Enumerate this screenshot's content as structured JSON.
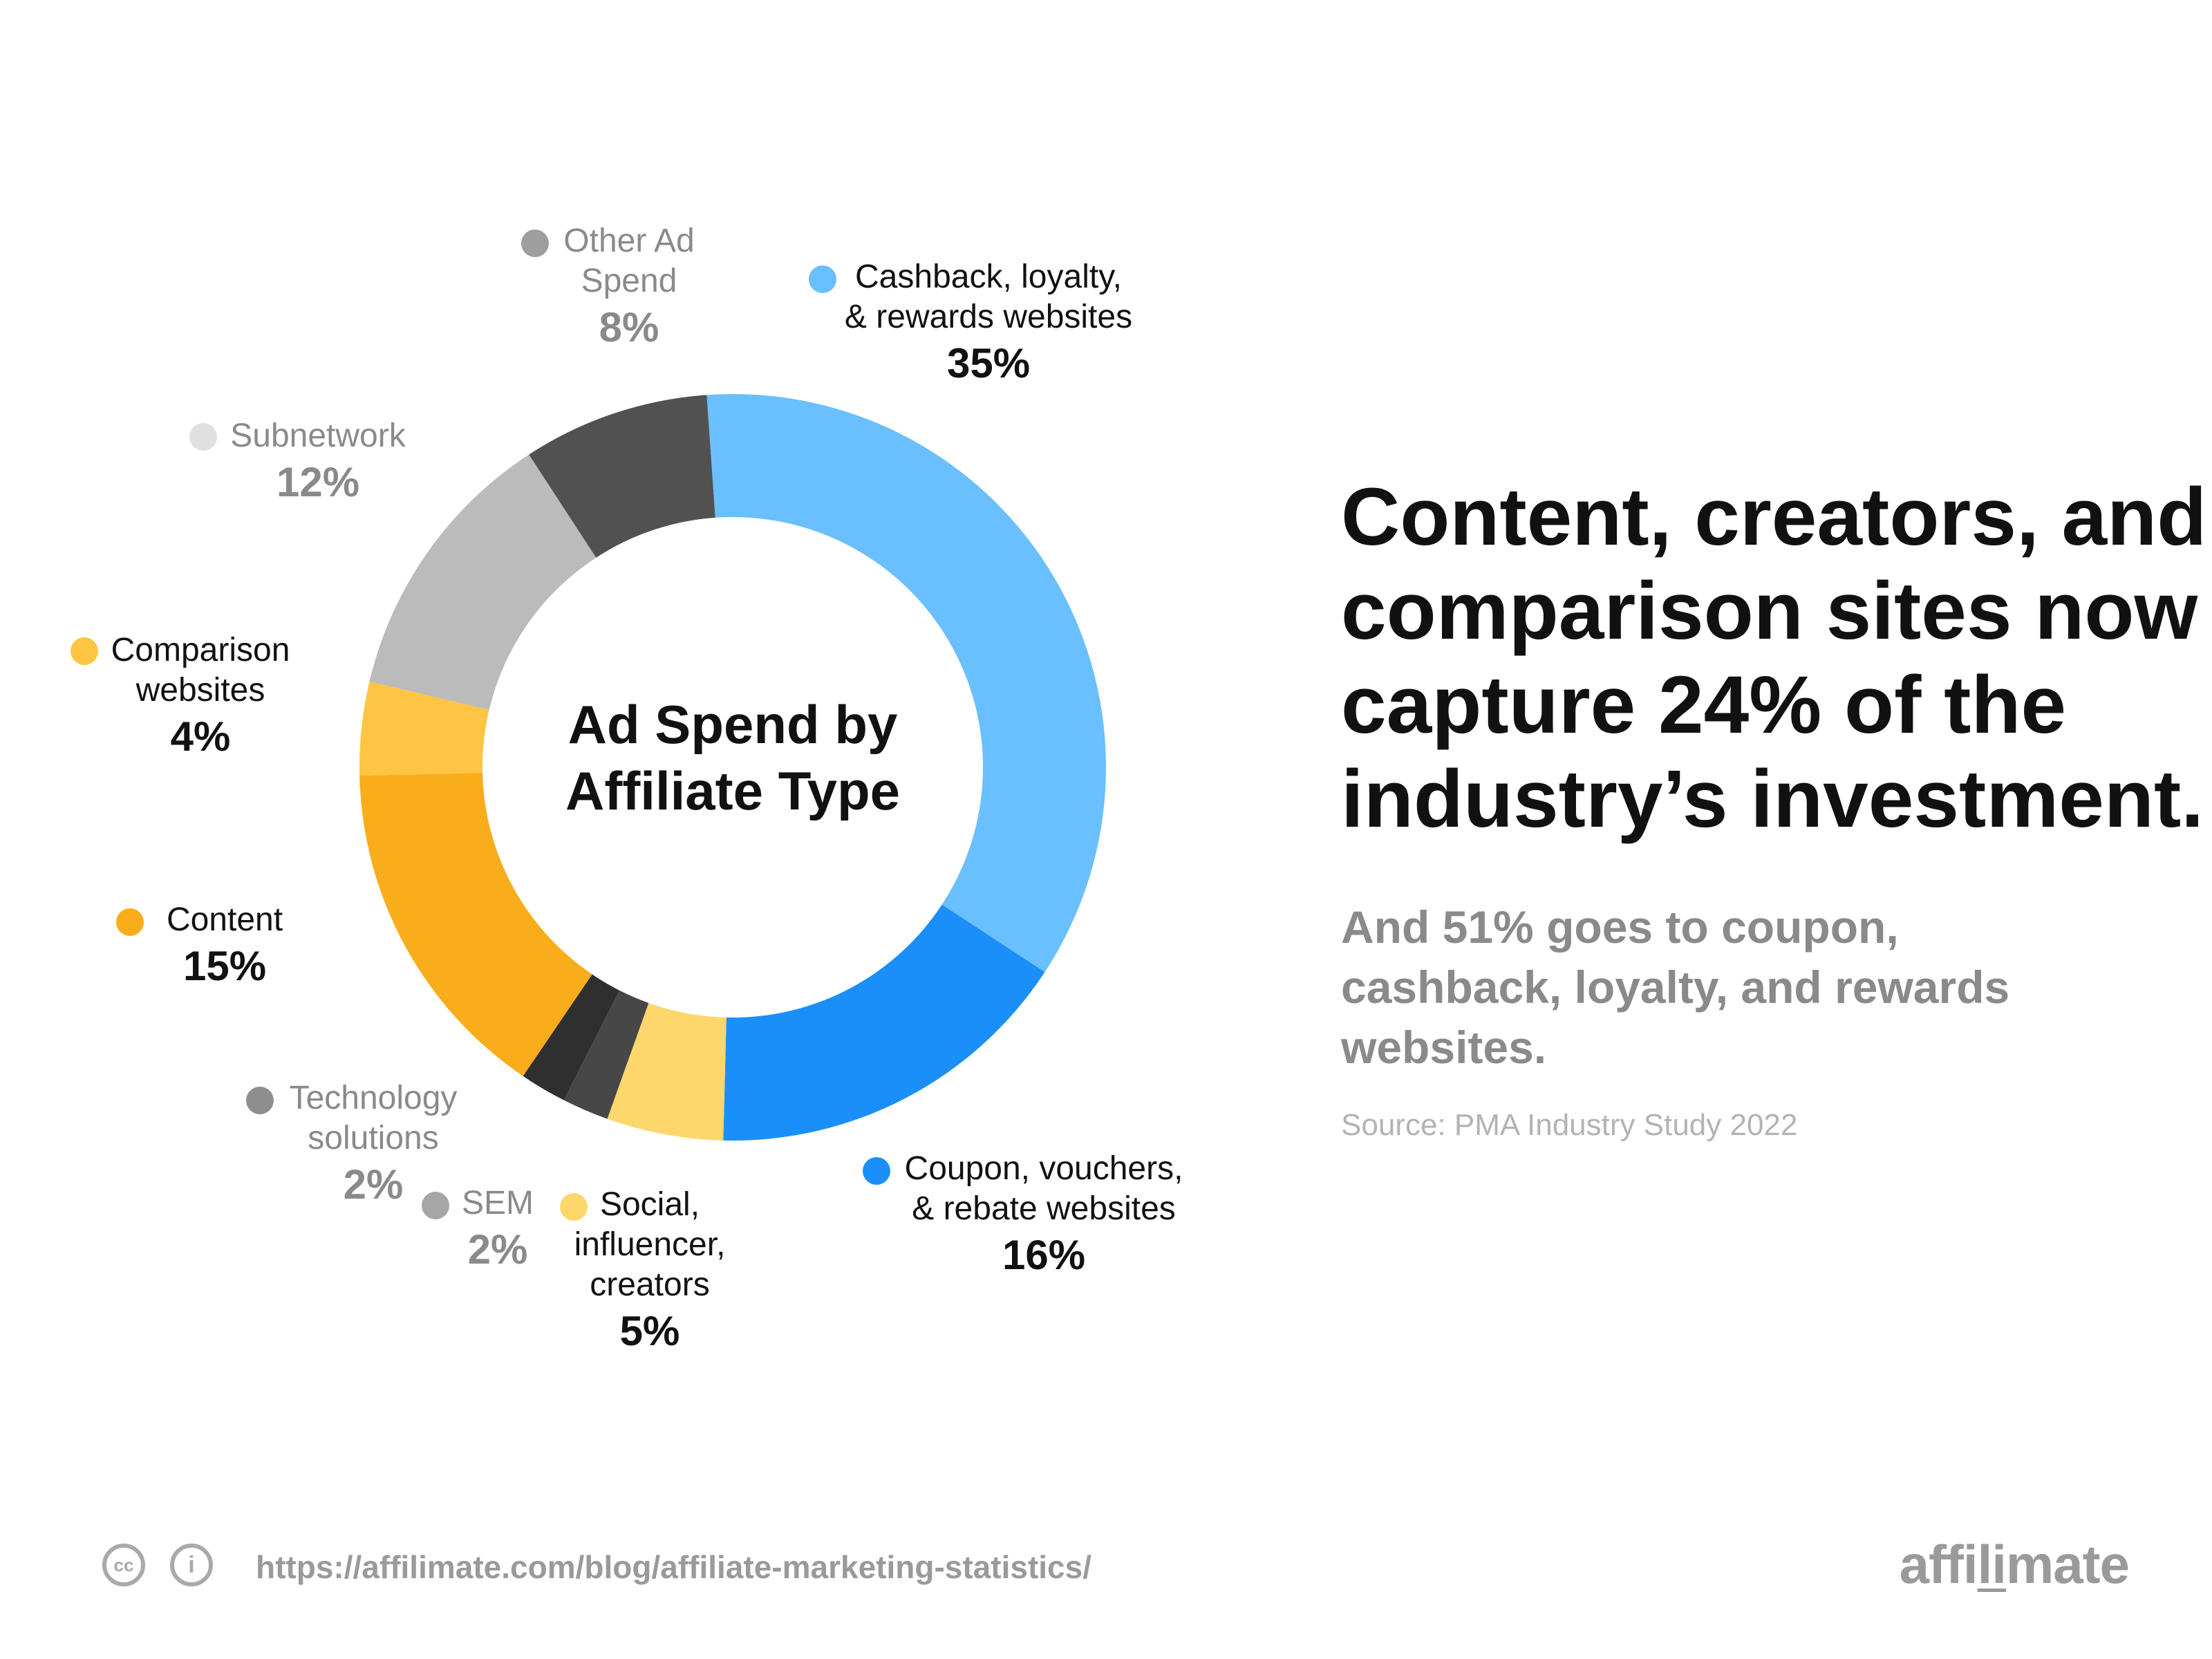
{
  "chart_data": {
    "type": "pie",
    "title": "Ad Spend by Affiliate Type",
    "title_lines": [
      "Ad Spend by",
      "Affiliate Type"
    ],
    "slices": [
      {
        "key": "cashback",
        "name_lines": [
          "Cashback, loyalty,",
          "& rewards websites"
        ],
        "value": 35,
        "label": "35%",
        "color": "#6abfff",
        "text_color": "#111111"
      },
      {
        "key": "coupon",
        "name_lines": [
          "Coupon, vouchers,",
          "& rebate websites"
        ],
        "value": 16,
        "label": "16%",
        "color": "#1a8ffa",
        "text_color": "#111111"
      },
      {
        "key": "social",
        "name_lines": [
          "Social,",
          "influencer,",
          "creators"
        ],
        "value": 5,
        "label": "5%",
        "color": "#fdd76b",
        "text_color": "#111111"
      },
      {
        "key": "sem",
        "name_lines": [
          "SEM"
        ],
        "value": 2,
        "label": "2%",
        "color": "#474747",
        "dot_color": "#a6a6a6",
        "text_color": "#8a8a8a"
      },
      {
        "key": "technology",
        "name_lines": [
          "Technology",
          "solutions"
        ],
        "value": 2,
        "label": "2%",
        "color": "#2f2f2f",
        "dot_color": "#8e8e8e",
        "text_color": "#8a8a8a"
      },
      {
        "key": "content",
        "name_lines": [
          "Content"
        ],
        "value": 15,
        "label": "15%",
        "color": "#f9ad1b",
        "text_color": "#111111"
      },
      {
        "key": "comparison",
        "name_lines": [
          "Comparison",
          "websites"
        ],
        "value": 4,
        "label": "4%",
        "color": "#fdc543",
        "text_color": "#111111"
      },
      {
        "key": "subnetwork",
        "name_lines": [
          "Subnetwork"
        ],
        "value": 12,
        "label": "12%",
        "color": "#bbbbbb",
        "dot_color": "#e0e0e0",
        "text_color": "#8a8a8a"
      },
      {
        "key": "other",
        "name_lines": [
          "Other Ad",
          "Spend"
        ],
        "value": 8,
        "label": "8%",
        "color": "#515151",
        "dot_color": "#9e9e9e",
        "text_color": "#8a8a8a"
      }
    ]
  },
  "headline": {
    "lines": [
      "Content, creators, and",
      "comparison sites now",
      "capture 24% of the",
      "industry’s investment."
    ]
  },
  "subheadline": {
    "lines": [
      "And 51% goes to coupon,",
      "cashback, loyalty, and rewards",
      "websites."
    ]
  },
  "source": "Source: PMA Industry Study 2022",
  "footer": {
    "url": "https://affilimate.com/blog/affiliate-marketing-statistics/",
    "cc_icon": "cc-icon",
    "by_icon": "attribution-icon",
    "brand_part1": "affi",
    "brand_part2": "li",
    "brand_part3": "mate"
  }
}
